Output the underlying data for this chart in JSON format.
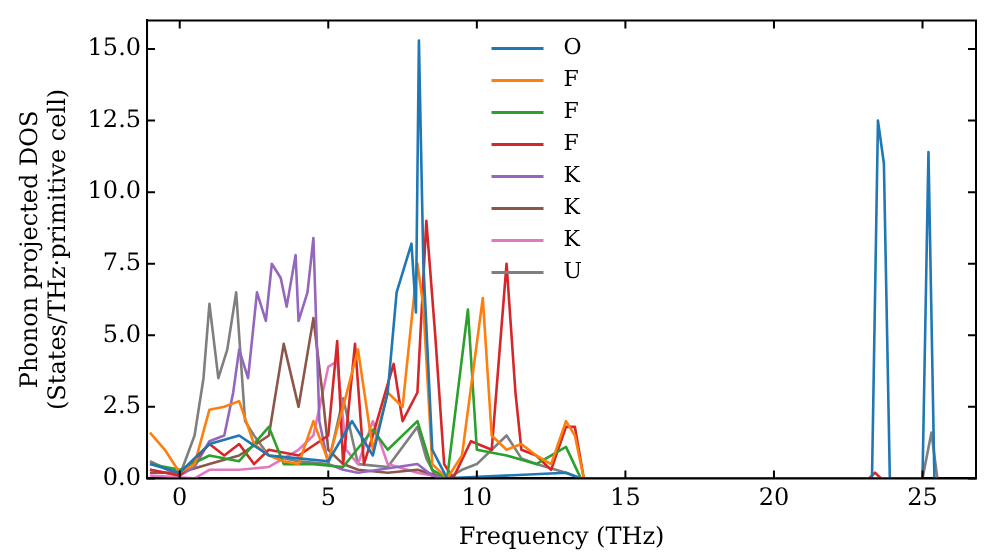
{
  "chart_data": {
    "type": "line",
    "xlabel": "Frequency (THz)",
    "ylabel": "Phonon projected DOS\n(States/THz·primitive cell)",
    "xlim": [
      -1.1,
      26.8
    ],
    "ylim": [
      0,
      16
    ],
    "xticks": [
      0,
      5,
      10,
      15,
      20,
      25
    ],
    "yticks": [
      {
        "value": 0,
        "label": "0.0"
      },
      {
        "value": 2.5,
        "label": "2.5"
      },
      {
        "value": 5,
        "label": "5.0"
      },
      {
        "value": 7.5,
        "label": "7.5"
      },
      {
        "value": 10,
        "label": "10.0"
      },
      {
        "value": 12.5,
        "label": "12.5"
      },
      {
        "value": 15,
        "label": "15.0"
      }
    ],
    "grid": false,
    "legend": "top",
    "marker": "none",
    "line_style": "solid",
    "series": [
      {
        "name": "O",
        "color": "#1f77b4",
        "x": [
          -1,
          0,
          1,
          2,
          3,
          4,
          5,
          5.8,
          6.5,
          7,
          7.3,
          7.8,
          7.95,
          8.05,
          8.2,
          8.5,
          9,
          13,
          13.5,
          23.3,
          23.5,
          23.7,
          23.9,
          25,
          25.2,
          25.4
        ],
        "values": [
          0.5,
          0.2,
          1.2,
          1.5,
          0.8,
          0.7,
          0.6,
          2,
          0.8,
          3,
          6.5,
          8.2,
          5.8,
          15.3,
          7.5,
          1,
          0,
          0.2,
          0,
          0,
          12.5,
          11,
          0,
          0,
          11.4,
          0
        ]
      },
      {
        "name": "F",
        "color": "#ff7f0e",
        "x": [
          -1,
          -0.5,
          0,
          0.5,
          1,
          1.5,
          2,
          2.5,
          3,
          3.5,
          4,
          4.5,
          5,
          5.5,
          6,
          6.5,
          7,
          7.5,
          8,
          8.2,
          8.5,
          9,
          9.5,
          10.2,
          10.5,
          11,
          11.5,
          12,
          12.5,
          13,
          13.3,
          13.6
        ],
        "values": [
          1.6,
          1,
          0.2,
          0.5,
          2.4,
          2.5,
          2.7,
          1.2,
          0.8,
          0.6,
          0.5,
          2,
          0.6,
          2.5,
          4.5,
          1,
          3,
          2.5,
          7.5,
          6,
          0.5,
          0,
          0.8,
          6.3,
          1.5,
          1,
          1.2,
          0.8,
          0.5,
          2,
          1.5,
          0
        ]
      },
      {
        "name": "F",
        "color": "#2ca02c",
        "x": [
          -1,
          0,
          1,
          2,
          3,
          3.5,
          4.5,
          5.5,
          6.5,
          7,
          8,
          8.5,
          9,
          9.7,
          10,
          11,
          12,
          13,
          13.5
        ],
        "values": [
          0.5,
          0.3,
          0.8,
          0.6,
          1.8,
          0.5,
          0.5,
          0.4,
          1.7,
          1,
          2,
          0.3,
          0,
          5.9,
          1,
          0.8,
          0.5,
          1.1,
          0
        ]
      },
      {
        "name": "F",
        "color": "#d62728",
        "x": [
          -1,
          0,
          1,
          1.5,
          2,
          2.5,
          3,
          4,
          5,
          5.3,
          5.5,
          5.9,
          6.2,
          6.5,
          7.2,
          7.5,
          8,
          8.3,
          8.6,
          8.9,
          9.2,
          9.8,
          10.5,
          11,
          11.3,
          11.5,
          12,
          12.5,
          13,
          13.3,
          13.6,
          23.2,
          23.4,
          23.6
        ],
        "values": [
          0.3,
          0.1,
          1.2,
          0.8,
          1.2,
          0.5,
          1,
          0.8,
          1.5,
          4.8,
          0.5,
          4.7,
          0.5,
          1.5,
          4,
          2,
          3,
          9,
          5,
          0.5,
          0,
          1.3,
          1,
          7.5,
          3,
          1,
          0.8,
          0.3,
          1.8,
          1.8,
          0,
          0,
          0.2,
          0
        ]
      },
      {
        "name": "K",
        "color": "#9467bd",
        "x": [
          -1,
          0,
          0.5,
          1,
          1.5,
          1.8,
          2,
          2.3,
          2.6,
          2.9,
          3.1,
          3.4,
          3.6,
          3.9,
          4,
          4.3,
          4.5,
          4.7,
          5,
          5.5,
          6,
          8,
          8.5,
          9
        ],
        "values": [
          0.3,
          0.1,
          0.4,
          1.3,
          1.5,
          3,
          4.5,
          3.5,
          6.5,
          5.5,
          7.5,
          7,
          6,
          7.8,
          5.5,
          6.5,
          8.4,
          2,
          0.5,
          0.3,
          0.2,
          0.5,
          0.1,
          0
        ]
      },
      {
        "name": "K",
        "color": "#8c564b",
        "x": [
          -1,
          0,
          1,
          2,
          3,
          3.5,
          4,
          4.5,
          4.8,
          5,
          5.5,
          6,
          7,
          8,
          9
        ],
        "values": [
          0.2,
          0.2,
          0.5,
          0.8,
          1.5,
          4.7,
          2.5,
          5.6,
          3,
          1,
          0.5,
          0.3,
          0.2,
          0.3,
          0
        ]
      },
      {
        "name": "K",
        "color": "#e377c2",
        "x": [
          -1,
          0.5,
          1,
          2,
          3,
          4,
          4.5,
          5,
          5.3,
          5.6,
          6,
          6.5,
          7,
          8,
          9
        ],
        "values": [
          0.1,
          0,
          0.3,
          0.3,
          0.4,
          1,
          1.5,
          3.9,
          4.1,
          1,
          0.5,
          2,
          0.5,
          0.2,
          0
        ]
      },
      {
        "name": "U",
        "color": "#7f7f7f",
        "x": [
          -1,
          0,
          0.5,
          0.8,
          1,
          1.3,
          1.6,
          1.9,
          2.2,
          2.5,
          3,
          4,
          5,
          5.5,
          6,
          7,
          8,
          8.3,
          8.6,
          9,
          9.5,
          10,
          11,
          11.5,
          12,
          13,
          13.5,
          25,
          25.3,
          25.5
        ],
        "values": [
          0.6,
          0.1,
          1.5,
          3.5,
          6.1,
          3.5,
          4.5,
          6.5,
          2,
          1.5,
          0.8,
          0.6,
          0.5,
          2.8,
          0.5,
          0.4,
          1.8,
          0.7,
          0.1,
          0,
          0.3,
          0.5,
          1.5,
          0.7,
          0.5,
          0.2,
          0,
          0,
          1.6,
          0
        ]
      }
    ]
  }
}
